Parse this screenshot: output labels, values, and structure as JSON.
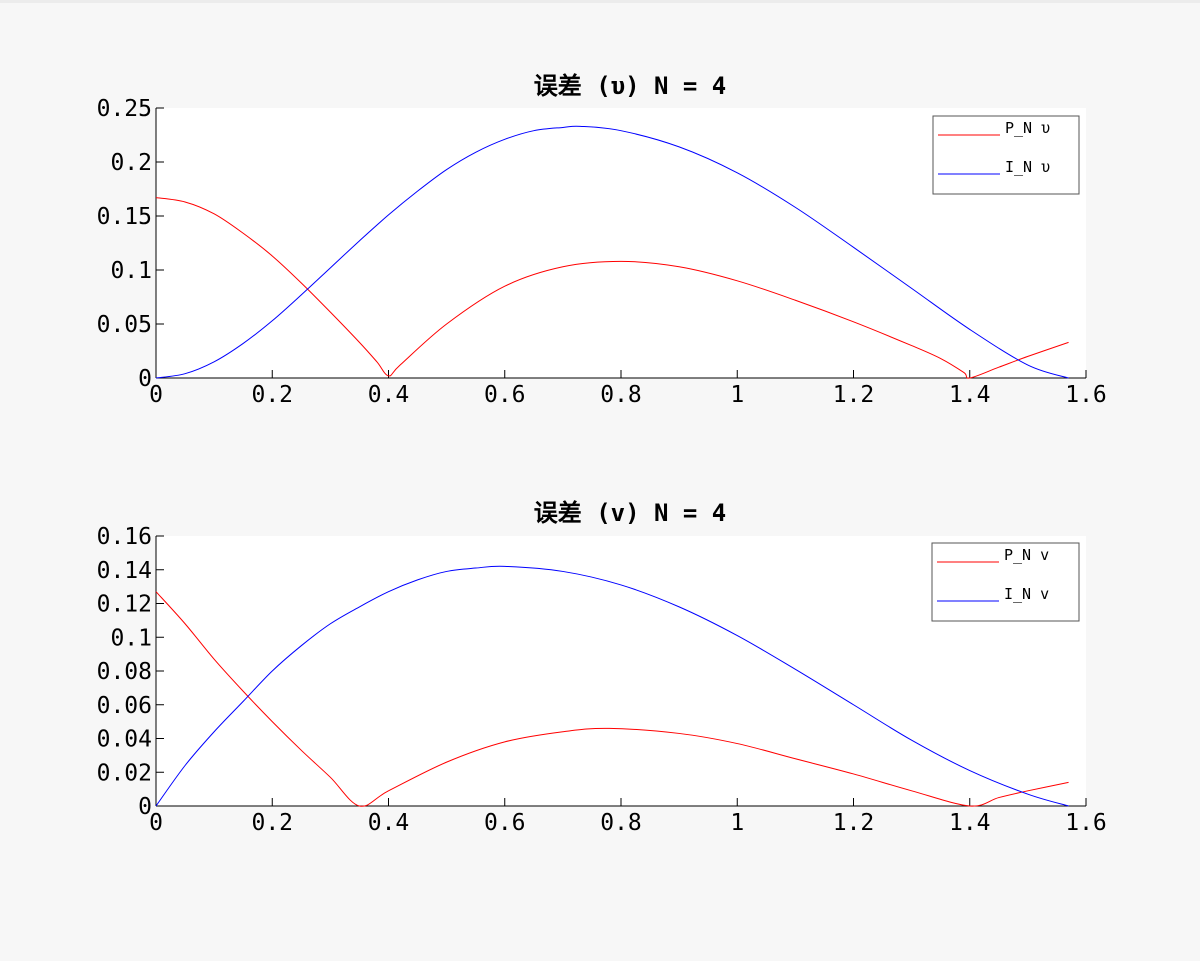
{
  "chart_data": [
    {
      "type": "line",
      "title": "误差 (υ) N = 4",
      "xlabel": "",
      "ylabel": "",
      "xlim": [
        0,
        1.6
      ],
      "ylim": [
        0,
        0.25
      ],
      "xticks": [
        "0",
        "0.2",
        "0.4",
        "0.6",
        "0.8",
        "1",
        "1.2",
        "1.4",
        "1.6"
      ],
      "yticks": [
        "0",
        "0.05",
        "0.1",
        "0.15",
        "0.2",
        "0.25"
      ],
      "grid": false,
      "legend_position": "top-right",
      "series": [
        {
          "name": "P_N υ",
          "color": "#ff0000",
          "x": [
            0,
            0.05,
            0.1,
            0.15,
            0.2,
            0.25,
            0.3,
            0.35,
            0.38,
            0.4,
            0.42,
            0.5,
            0.6,
            0.7,
            0.8,
            0.9,
            1.0,
            1.1,
            1.2,
            1.3,
            1.35,
            1.39,
            1.4,
            1.45,
            1.5,
            1.57
          ],
          "y": [
            0.167,
            0.163,
            0.152,
            0.134,
            0.113,
            0.088,
            0.061,
            0.033,
            0.015,
            0.002,
            0.012,
            0.05,
            0.085,
            0.103,
            0.108,
            0.103,
            0.09,
            0.072,
            0.052,
            0.03,
            0.018,
            0.005,
            0.0,
            0.01,
            0.02,
            0.033
          ]
        },
        {
          "name": "I_N υ",
          "color": "#0000ff",
          "x": [
            0,
            0.05,
            0.1,
            0.15,
            0.2,
            0.25,
            0.3,
            0.35,
            0.4,
            0.45,
            0.5,
            0.55,
            0.6,
            0.65,
            0.7,
            0.73,
            0.8,
            0.9,
            1.0,
            1.1,
            1.2,
            1.3,
            1.4,
            1.5,
            1.57
          ],
          "y": [
            0,
            0.004,
            0.015,
            0.032,
            0.053,
            0.077,
            0.102,
            0.127,
            0.151,
            0.173,
            0.193,
            0.209,
            0.221,
            0.229,
            0.232,
            0.233,
            0.229,
            0.214,
            0.19,
            0.158,
            0.121,
            0.083,
            0.045,
            0.012,
            0.0
          ]
        }
      ]
    },
    {
      "type": "line",
      "title": "误差 (v) N = 4",
      "xlabel": "",
      "ylabel": "",
      "xlim": [
        0,
        1.6
      ],
      "ylim": [
        0,
        0.16
      ],
      "xticks": [
        "0",
        "0.2",
        "0.4",
        "0.6",
        "0.8",
        "1",
        "1.2",
        "1.4",
        "1.6"
      ],
      "yticks": [
        "0",
        "0.02",
        "0.04",
        "0.06",
        "0.08",
        "0.1",
        "0.12",
        "0.14",
        "0.16"
      ],
      "grid": false,
      "legend_position": "top-right",
      "series": [
        {
          "name": "P_N v",
          "color": "#ff0000",
          "x": [
            0,
            0.05,
            0.1,
            0.15,
            0.2,
            0.25,
            0.3,
            0.35,
            0.4,
            0.5,
            0.6,
            0.7,
            0.78,
            0.9,
            1.0,
            1.1,
            1.2,
            1.3,
            1.4,
            1.45,
            1.5,
            1.57
          ],
          "y": [
            0.127,
            0.108,
            0.087,
            0.068,
            0.05,
            0.033,
            0.017,
            0.0,
            0.009,
            0.026,
            0.038,
            0.044,
            0.046,
            0.043,
            0.037,
            0.028,
            0.019,
            0.009,
            0.0,
            0.005,
            0.009,
            0.014
          ]
        },
        {
          "name": "I_N v",
          "color": "#0000ff",
          "x": [
            0,
            0.05,
            0.1,
            0.15,
            0.2,
            0.25,
            0.3,
            0.35,
            0.4,
            0.45,
            0.5,
            0.55,
            0.6,
            0.7,
            0.8,
            0.9,
            1.0,
            1.1,
            1.2,
            1.3,
            1.4,
            1.5,
            1.57
          ],
          "y": [
            0,
            0.024,
            0.044,
            0.062,
            0.08,
            0.095,
            0.108,
            0.118,
            0.127,
            0.134,
            0.139,
            0.141,
            0.142,
            0.139,
            0.131,
            0.118,
            0.101,
            0.081,
            0.06,
            0.039,
            0.021,
            0.007,
            0.0
          ]
        }
      ]
    }
  ]
}
